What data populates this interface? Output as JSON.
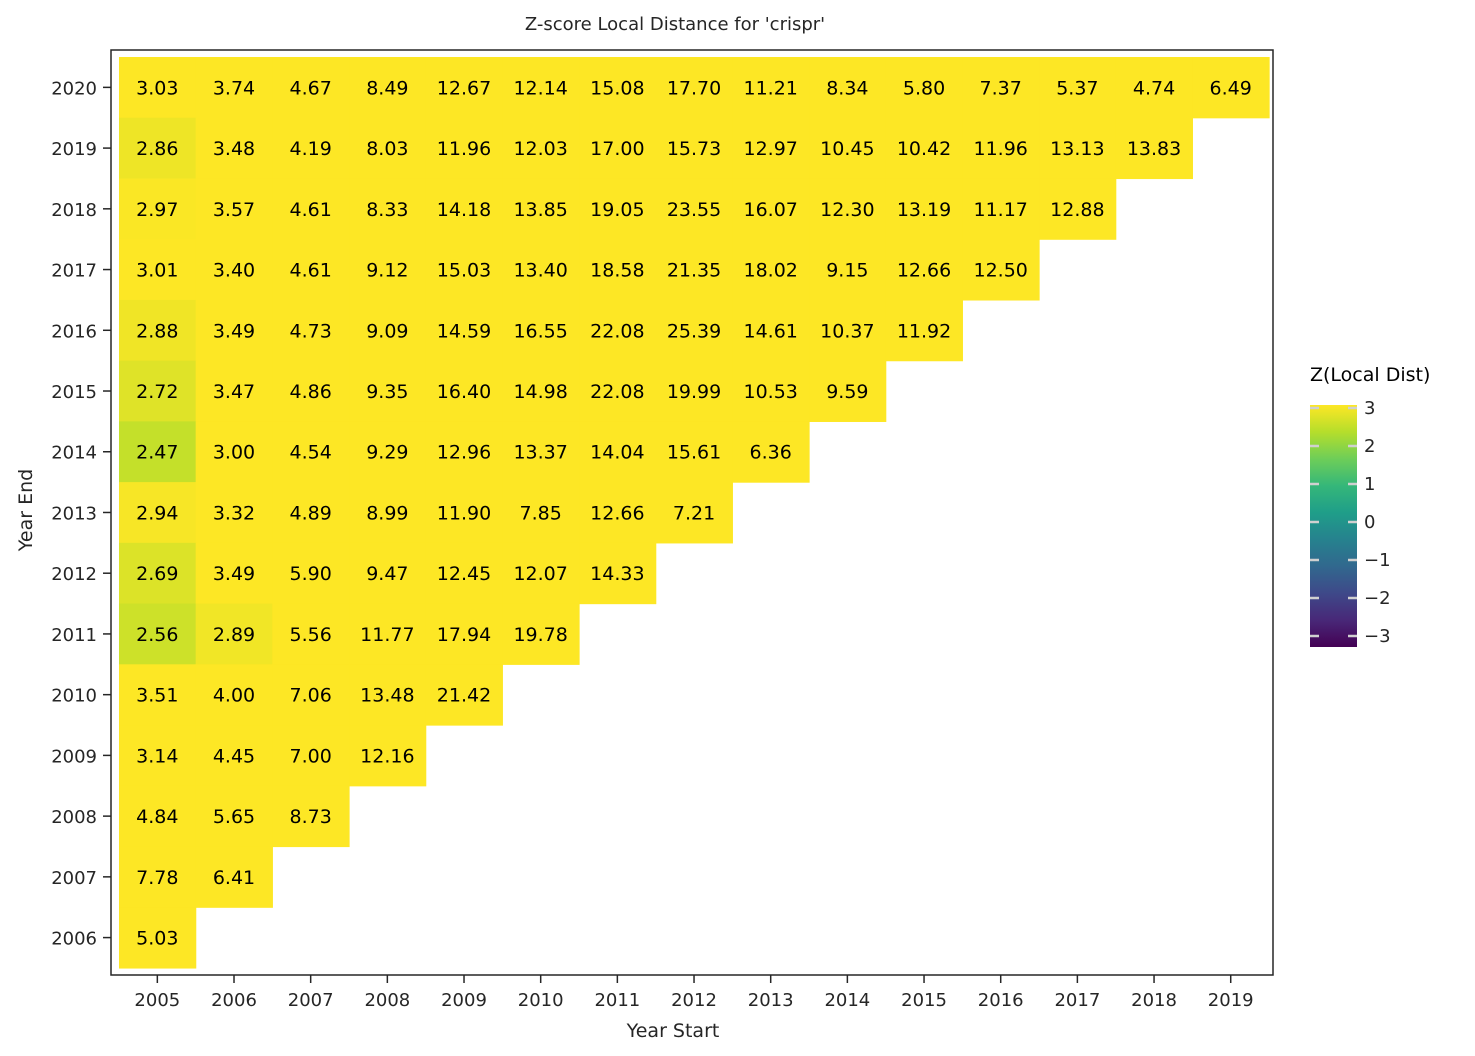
{
  "chart_data": {
    "type": "heatmap",
    "title": "Z-score Local Distance for 'crispr'",
    "xlabel": "Year Start",
    "ylabel": "Year End",
    "x_categories": [
      "2005",
      "2006",
      "2007",
      "2008",
      "2009",
      "2010",
      "2011",
      "2012",
      "2013",
      "2014",
      "2015",
      "2016",
      "2017",
      "2018",
      "2019"
    ],
    "y_categories": [
      "2020",
      "2019",
      "2018",
      "2017",
      "2016",
      "2015",
      "2014",
      "2013",
      "2012",
      "2011",
      "2010",
      "2009",
      "2008",
      "2007",
      "2006"
    ],
    "values": [
      [
        3.03,
        3.74,
        4.67,
        8.49,
        12.67,
        12.14,
        15.08,
        17.7,
        11.21,
        8.34,
        5.8,
        7.37,
        5.37,
        4.74,
        6.49
      ],
      [
        2.86,
        3.48,
        4.19,
        8.03,
        11.96,
        12.03,
        17.0,
        15.73,
        12.97,
        10.45,
        10.42,
        11.96,
        13.13,
        13.83
      ],
      [
        2.97,
        3.57,
        4.61,
        8.33,
        14.18,
        13.85,
        19.05,
        23.55,
        16.07,
        12.3,
        13.19,
        11.17,
        12.88
      ],
      [
        3.01,
        3.4,
        4.61,
        9.12,
        15.03,
        13.4,
        18.58,
        21.35,
        18.02,
        9.15,
        12.66,
        12.5
      ],
      [
        2.88,
        3.49,
        4.73,
        9.09,
        14.59,
        16.55,
        22.08,
        25.39,
        14.61,
        10.37,
        11.92
      ],
      [
        2.72,
        3.47,
        4.86,
        9.35,
        16.4,
        14.98,
        22.08,
        19.99,
        10.53,
        9.59
      ],
      [
        2.47,
        3.0,
        4.54,
        9.29,
        12.96,
        13.37,
        14.04,
        15.61,
        6.36
      ],
      [
        2.94,
        3.32,
        4.89,
        8.99,
        11.9,
        7.85,
        12.66,
        7.21
      ],
      [
        2.69,
        3.49,
        5.9,
        9.47,
        12.45,
        12.07,
        14.33
      ],
      [
        2.56,
        2.89,
        5.56,
        11.77,
        17.94,
        19.78
      ],
      [
        3.51,
        4.0,
        7.06,
        13.48,
        21.42
      ],
      [
        3.14,
        4.45,
        7.0,
        12.16
      ],
      [
        4.84,
        5.65,
        8.73
      ],
      [
        7.78,
        6.41
      ],
      [
        5.03
      ]
    ],
    "value_labels": [
      [
        "3.03",
        "3.74",
        "4.67",
        "8.49",
        "12.67",
        "12.14",
        "15.08",
        "17.70",
        "11.21",
        "8.34",
        "5.80",
        "7.37",
        "5.37",
        "4.74",
        "6.49"
      ],
      [
        "2.86",
        "3.48",
        "4.19",
        "8.03",
        "11.96",
        "12.03",
        "17.00",
        "15.73",
        "12.97",
        "10.45",
        "10.42",
        "11.96",
        "13.13",
        "13.83"
      ],
      [
        "2.97",
        "3.57",
        "4.61",
        "8.33",
        "14.18",
        "13.85",
        "19.05",
        "23.55",
        "16.07",
        "12.30",
        "13.19",
        "11.17",
        "12.88"
      ],
      [
        "3.01",
        "3.40",
        "4.61",
        "9.12",
        "15.03",
        "13.40",
        "18.58",
        "21.35",
        "18.02",
        "9.15",
        "12.66",
        "12.50"
      ],
      [
        "2.88",
        "3.49",
        "4.73",
        "9.09",
        "14.59",
        "16.55",
        "22.08",
        "25.39",
        "14.61",
        "10.37",
        "11.92"
      ],
      [
        "2.72",
        "3.47",
        "4.86",
        "9.35",
        "16.40",
        "14.98",
        "22.08",
        "19.99",
        "10.53",
        "9.59"
      ],
      [
        "2.47",
        "3.00",
        "4.54",
        "9.29",
        "12.96",
        "13.37",
        "14.04",
        "15.61",
        "6.36"
      ],
      [
        "2.94",
        "3.32",
        "4.89",
        "8.99",
        "11.90",
        "7.85",
        "12.66",
        "7.21"
      ],
      [
        "2.69",
        "3.49",
        "5.90",
        "9.47",
        "12.45",
        "12.07",
        "14.33"
      ],
      [
        "2.56",
        "2.89",
        "5.56",
        "11.77",
        "17.94",
        "19.78"
      ],
      [
        "3.51",
        "4.00",
        "7.06",
        "13.48",
        "21.42"
      ],
      [
        "3.14",
        "4.45",
        "7.00",
        "12.16"
      ],
      [
        "4.84",
        "5.65",
        "8.73"
      ],
      [
        "7.78",
        "6.41"
      ],
      [
        "5.03"
      ]
    ],
    "colorbar": {
      "title": "Z(Local Dist)",
      "range": [
        -3,
        3
      ],
      "ticks": [
        3,
        2,
        1,
        0,
        -1,
        -2,
        -3
      ],
      "tick_labels": [
        "3",
        "2",
        "1",
        "0",
        "−1",
        "−2",
        "−3"
      ],
      "colormap": "viridis",
      "colors": [
        "#440154",
        "#482878",
        "#3e4989",
        "#31688e",
        "#26828e",
        "#1f9e89",
        "#35b779",
        "#6ece58",
        "#b5de2b",
        "#fde725"
      ]
    },
    "grid": false,
    "legend_position": "right"
  }
}
